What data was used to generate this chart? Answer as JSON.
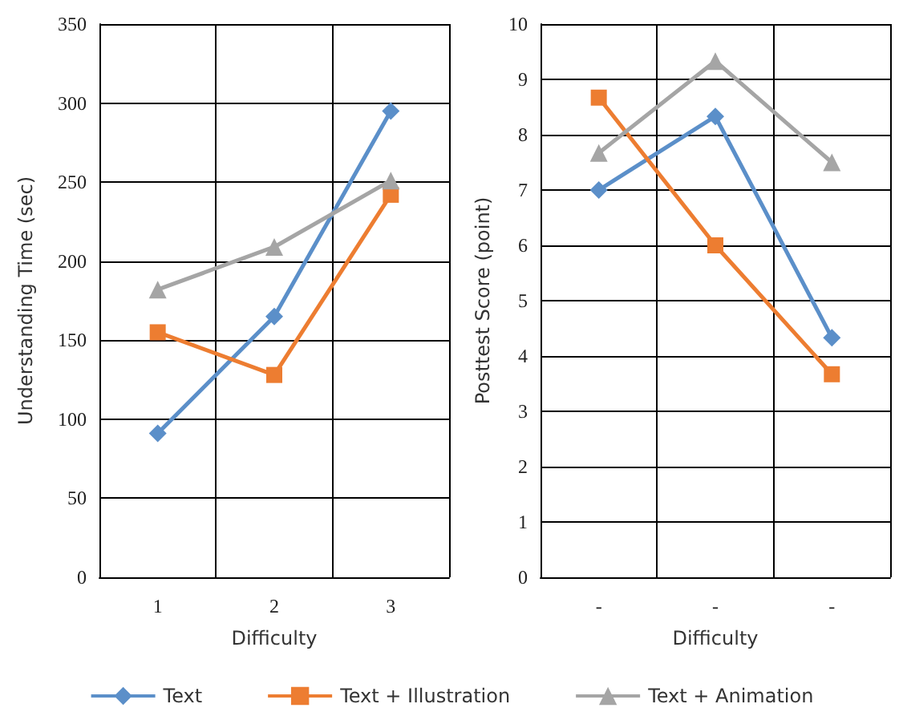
{
  "chart_data": [
    {
      "type": "line",
      "xlabel": "Difficulty",
      "ylabel": "Understanding Time (sec)",
      "categories": [
        "1",
        "2",
        "3"
      ],
      "ylim": [
        0,
        350
      ],
      "yticks": [
        0,
        50,
        100,
        150,
        200,
        250,
        300,
        350
      ],
      "grid": true,
      "legend": "bottom",
      "series": [
        {
          "name": "Text",
          "color": "#5b8fc9",
          "marker": "diamond",
          "values": [
            91,
            165,
            295
          ]
        },
        {
          "name": "Text + Illustration",
          "color": "#ed7d31",
          "marker": "square",
          "values": [
            155,
            128,
            242
          ]
        },
        {
          "name": "Text + Animation",
          "color": "#a5a5a5",
          "marker": "triangle",
          "values": [
            182,
            209,
            251
          ]
        }
      ]
    },
    {
      "type": "line",
      "xlabel": "Difficulty",
      "ylabel": "Posttest Score (point)",
      "categories": [
        "-",
        "-",
        "-"
      ],
      "ylim": [
        0,
        10
      ],
      "yticks": [
        0,
        1,
        2,
        3,
        4,
        5,
        6,
        7,
        8,
        9,
        10
      ],
      "grid": true,
      "series": [
        {
          "name": "Text",
          "color": "#5b8fc9",
          "marker": "diamond",
          "values": [
            7.0,
            8.33,
            4.33
          ]
        },
        {
          "name": "Text + Illustration",
          "color": "#ed7d31",
          "marker": "square",
          "values": [
            8.67,
            6.0,
            3.67
          ]
        },
        {
          "name": "Text + Animation",
          "color": "#a5a5a5",
          "marker": "triangle",
          "values": [
            7.67,
            9.33,
            7.5
          ]
        }
      ]
    }
  ]
}
